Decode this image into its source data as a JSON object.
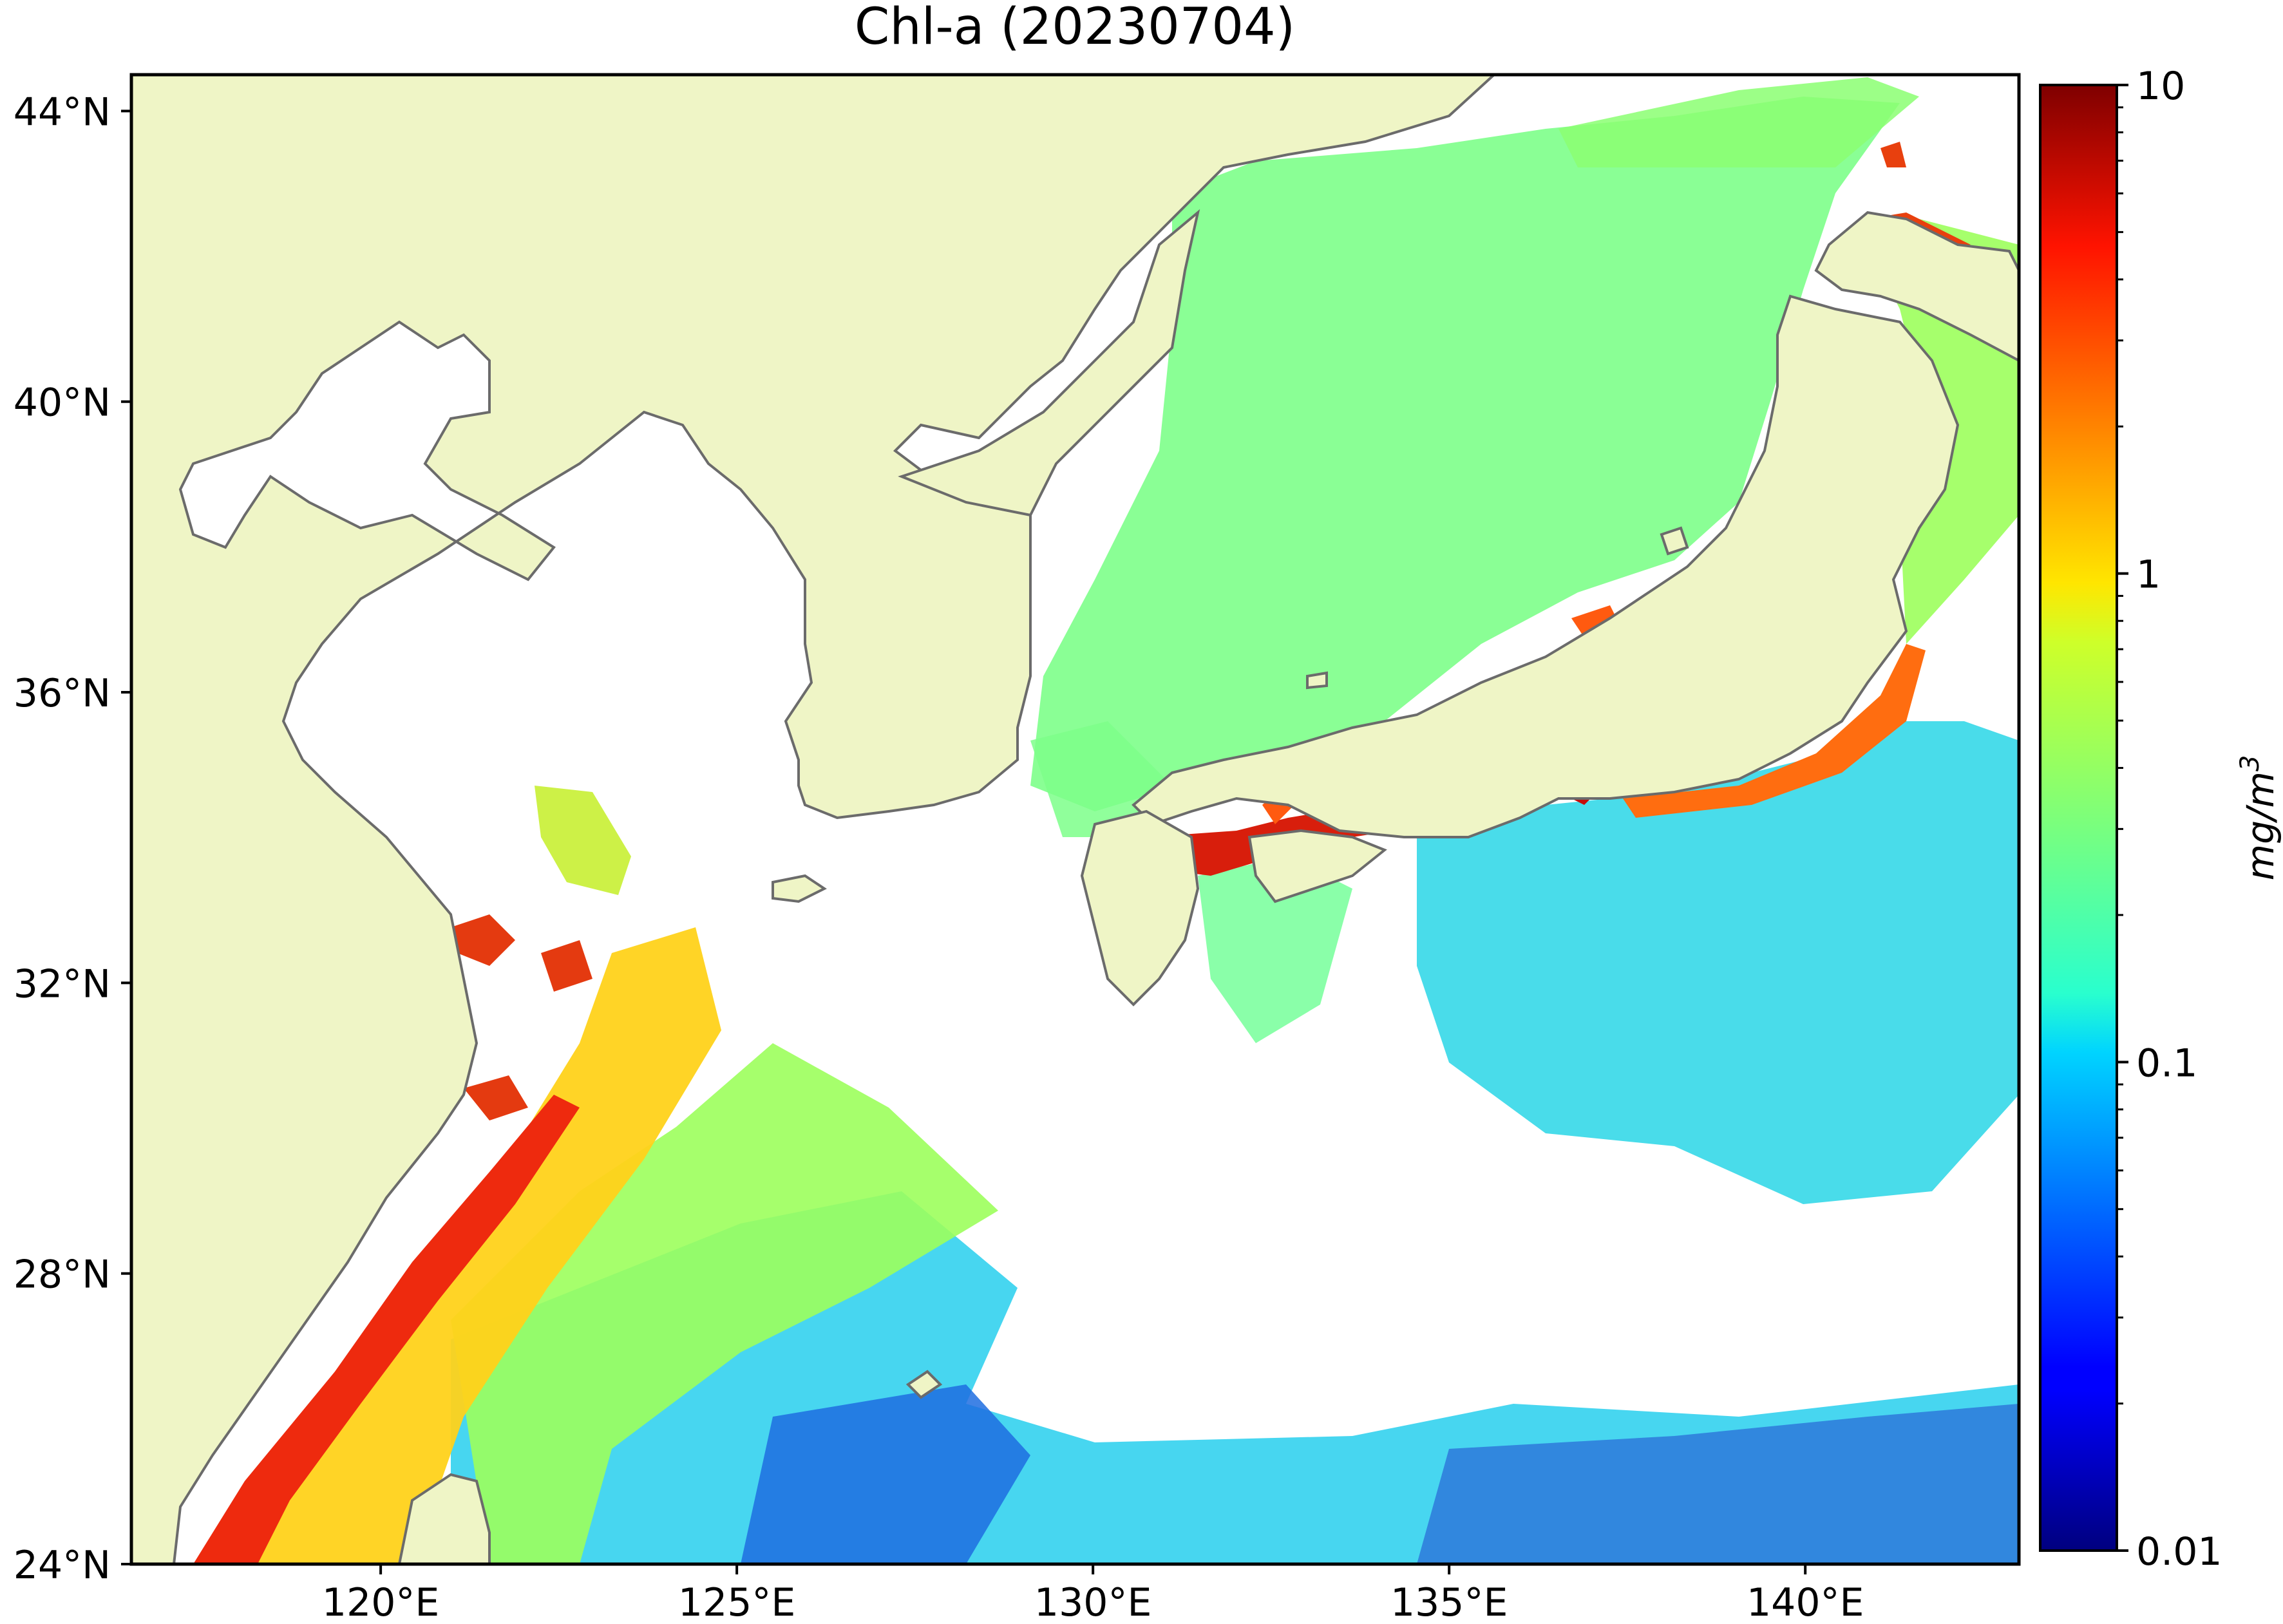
{
  "title": "Chl-a (20230704)",
  "map": {
    "lon_range": [
      116.5,
      143
    ],
    "lat_range": [
      24,
      44.5
    ],
    "land_color": "#eff5c6",
    "ocean_nodata_color": "#ffffff",
    "coastline_color": "#6b6b6b",
    "x_ticks": [
      {
        "value": 120,
        "label": "120°E"
      },
      {
        "value": 125,
        "label": "125°E"
      },
      {
        "value": 130,
        "label": "130°E"
      },
      {
        "value": 135,
        "label": "135°E"
      },
      {
        "value": 140,
        "label": "140°E"
      }
    ],
    "y_ticks": [
      {
        "value": 24,
        "label": "24°N"
      },
      {
        "value": 28,
        "label": "28°N"
      },
      {
        "value": 32,
        "label": "32°N"
      },
      {
        "value": 36,
        "label": "36°N"
      },
      {
        "value": 40,
        "label": "40°N"
      },
      {
        "value": 44,
        "label": "44°N"
      }
    ]
  },
  "colorbar": {
    "label_main": "mg/m",
    "label_sup": "3",
    "scale": "log",
    "range": [
      0.01,
      10
    ],
    "colormap": "jet",
    "tick_labels": [
      {
        "value": 10,
        "label": "10"
      },
      {
        "value": 1,
        "label": "1"
      },
      {
        "value": 0.1,
        "label": "0.1"
      },
      {
        "value": 0.01,
        "label": "0.01"
      }
    ]
  }
}
